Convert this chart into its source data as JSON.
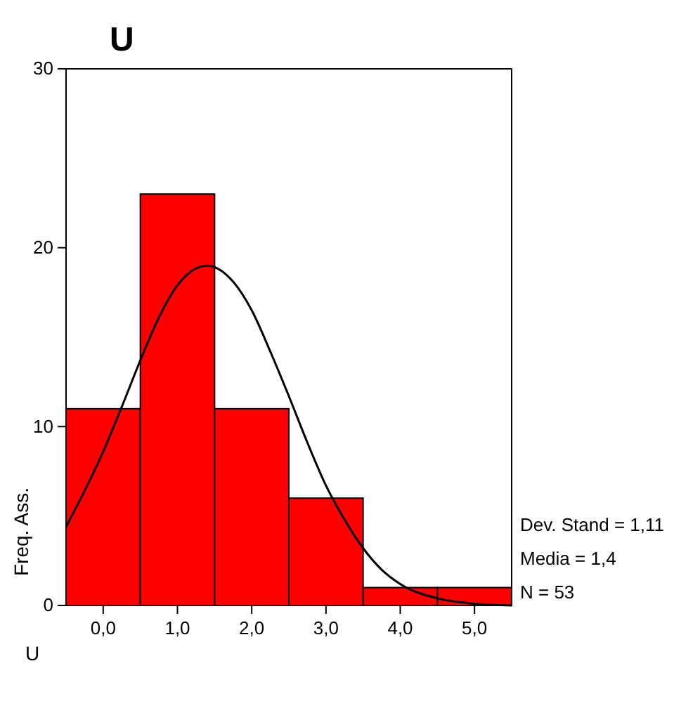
{
  "chart_data": {
    "type": "histogram",
    "title": "U",
    "xlabel": "U",
    "ylabel": "Freq. Ass.",
    "bins": [
      -0.5,
      0.5,
      1.5,
      2.5,
      3.5,
      4.5,
      5.5
    ],
    "values": [
      11,
      23,
      11,
      6,
      1,
      1
    ],
    "color": "#ff0000",
    "xlim": [
      -0.5,
      5.5
    ],
    "xticks": [
      {
        "value": 0,
        "label": "0,0"
      },
      {
        "value": 1,
        "label": "1,0"
      },
      {
        "value": 2,
        "label": "2,0"
      },
      {
        "value": 3,
        "label": "3,0"
      },
      {
        "value": 4,
        "label": "4,0"
      },
      {
        "value": 5,
        "label": "5,0"
      }
    ],
    "ylim": [
      0,
      30
    ],
    "yticks": [
      0,
      10,
      20,
      30
    ],
    "grid": false,
    "series": [
      {
        "type": "line",
        "color": "#000000",
        "x": [
          -0.5,
          0,
          0.25,
          0.5,
          0.75,
          1,
          1.4,
          1.75,
          2,
          2.25,
          2.5,
          2.75,
          3,
          3.25,
          3.5,
          3.75,
          4,
          4.5,
          5,
          5.5
        ],
        "values": [
          4.4,
          8.6,
          11.1,
          13.7,
          16.1,
          17.9,
          19.0,
          18.1,
          16.5,
          14.2,
          11.7,
          9.1,
          6.7,
          4.8,
          3.2,
          2.0,
          1.2,
          0.4,
          0.1,
          0
        ]
      }
    ],
    "annotations": [
      "Dev. Stand = 1,11",
      "Media = 1,4",
      "N = 53"
    ]
  }
}
